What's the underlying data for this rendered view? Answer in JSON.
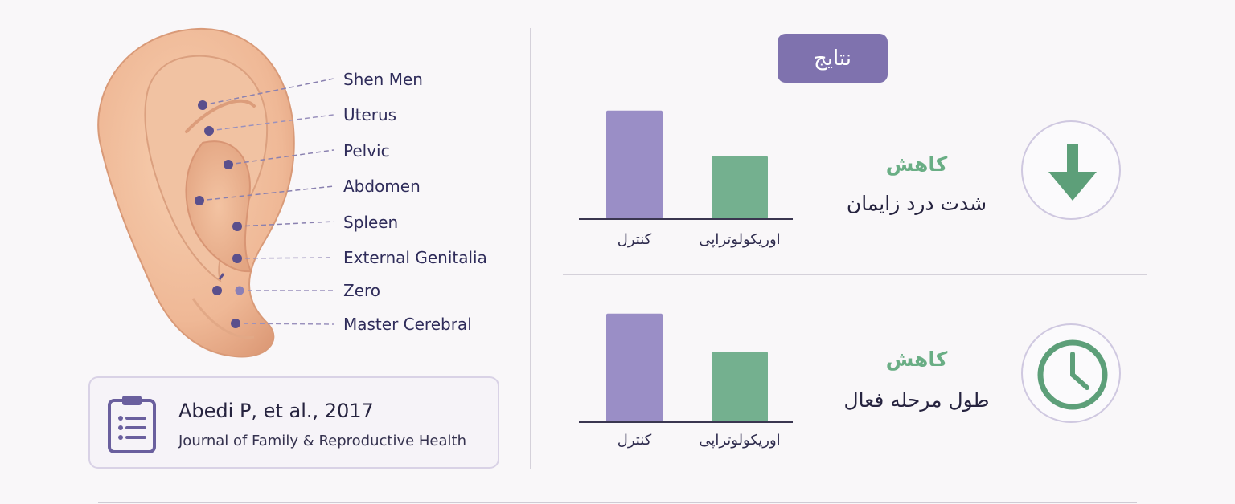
{
  "ear_labels": [
    {
      "name": "shen-men",
      "text": "Shen Men"
    },
    {
      "name": "uterus",
      "text": "Uterus"
    },
    {
      "name": "pelvic",
      "text": "Pelvic"
    },
    {
      "name": "abdomen",
      "text": "Abdomen"
    },
    {
      "name": "spleen",
      "text": "Spleen"
    },
    {
      "name": "external-genitalia",
      "text": "External Genitalia"
    },
    {
      "name": "zero",
      "text": "Zero"
    },
    {
      "name": "master-cerebral",
      "text": "Master Cerebral"
    }
  ],
  "citation": {
    "author": "Abedi P, et al., 2017",
    "journal": "Journal of Family & Reproductive Health",
    "icon": "clipboard-list-icon"
  },
  "results": {
    "title": "نتایج",
    "rows": [
      {
        "trend": "کاهش",
        "metric": "شدت درد زایمان",
        "icon": "arrow-down-icon",
        "chart": {
          "categories": [
            "کنترل",
            "اوریکولوتراپی"
          ],
          "values": [
            1.0,
            0.58
          ],
          "ylim": [
            0,
            1.05
          ]
        }
      },
      {
        "trend": "کاهش",
        "metric": "طول مرحله فعال",
        "icon": "clock-icon",
        "chart": {
          "categories": [
            "کنترل",
            "اوریکولوتراپی"
          ],
          "values": [
            1.0,
            0.65
          ],
          "ylim": [
            0,
            1.05
          ]
        }
      }
    ]
  },
  "chart_data": [
    {
      "type": "bar",
      "categories": [
        "کنترل",
        "اوریکولوتراپی"
      ],
      "values": [
        1.0,
        0.58
      ],
      "ylim": [
        0,
        1.05
      ]
    },
    {
      "type": "bar",
      "categories": [
        "کنترل",
        "اوریکولوتراپی"
      ],
      "values": [
        1.0,
        0.65
      ],
      "ylim": [
        0,
        1.05
      ]
    }
  ],
  "colors": {
    "control_bar": "#9a8ec6",
    "treatment_bar": "#74b08f",
    "accent_purple": "#7f72ae",
    "accent_green": "#6aae85",
    "point_dot": "#5a4f8c"
  }
}
